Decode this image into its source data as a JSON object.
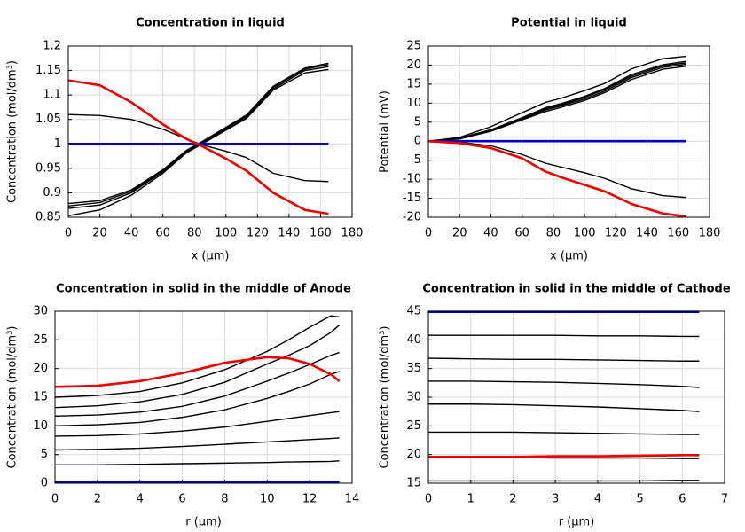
{
  "chart_data": [
    {
      "type": "line",
      "title": "Concentration in liquid",
      "xlabel": "x (µm)",
      "ylabel": "Concentration (mol/dm³)",
      "x": [
        0,
        20,
        40,
        60,
        75,
        85,
        100,
        113,
        130,
        150,
        165
      ],
      "series": [
        {
          "color": "#000000",
          "values": [
            0.853,
            0.865,
            0.895,
            0.94,
            0.982,
            1.0,
            1.028,
            1.052,
            1.11,
            1.145,
            1.152
          ]
        },
        {
          "color": "#000000",
          "values": [
            0.868,
            0.875,
            0.9,
            0.943,
            0.984,
            1.002,
            1.03,
            1.055,
            1.113,
            1.15,
            1.158
          ]
        },
        {
          "color": "#000000",
          "values": [
            0.873,
            0.88,
            0.903,
            0.945,
            0.986,
            1.004,
            1.032,
            1.057,
            1.116,
            1.153,
            1.162
          ]
        },
        {
          "color": "#000000",
          "values": [
            0.878,
            0.884,
            0.906,
            0.947,
            0.987,
            1.005,
            1.034,
            1.059,
            1.118,
            1.155,
            1.165
          ]
        },
        {
          "color": "#000000",
          "values": [
            1.06,
            1.058,
            1.05,
            1.03,
            1.01,
            0.998,
            0.985,
            0.972,
            0.94,
            0.925,
            0.923
          ]
        },
        {
          "color": "#0000cc",
          "values": [
            1,
            1,
            1,
            1,
            1,
            1,
            1,
            1,
            1,
            1,
            1
          ]
        },
        {
          "color": "#ee0000",
          "values": [
            1.13,
            1.12,
            1.085,
            1.04,
            1.01,
            0.995,
            0.97,
            0.945,
            0.9,
            0.865,
            0.857
          ]
        }
      ],
      "xlim": [
        0,
        180
      ],
      "xticks": [
        0,
        20,
        40,
        60,
        80,
        100,
        120,
        140,
        160,
        180
      ],
      "ylim": [
        0.85,
        1.2
      ],
      "yticks": [
        0.85,
        0.9,
        0.95,
        1,
        1.05,
        1.1,
        1.15,
        1.2
      ],
      "grid": true
    },
    {
      "type": "line",
      "title": "Potential in liquid",
      "xlabel": "x (µm)",
      "ylabel": "Potential (mV)",
      "x": [
        0,
        20,
        40,
        60,
        75,
        85,
        100,
        113,
        130,
        150,
        165
      ],
      "series": [
        {
          "color": "#000000",
          "values": [
            0,
            1,
            3.8,
            7.5,
            10.2,
            11.3,
            13.3,
            15.2,
            19,
            21.7,
            22.3
          ]
        },
        {
          "color": "#000000",
          "values": [
            0,
            0.8,
            3,
            6.2,
            8.8,
            9.9,
            11.8,
            13.9,
            17.5,
            20.1,
            21
          ]
        },
        {
          "color": "#000000",
          "values": [
            0,
            0.75,
            2.9,
            6,
            8.5,
            9.6,
            11.5,
            13.6,
            17.1,
            19.8,
            20.6
          ]
        },
        {
          "color": "#000000",
          "values": [
            0,
            0.7,
            2.8,
            5.8,
            8.2,
            9.3,
            11.1,
            13.2,
            16.7,
            19.4,
            20.2
          ]
        },
        {
          "color": "#000000",
          "values": [
            0,
            0.6,
            2.6,
            5.6,
            7.8,
            8.9,
            10.7,
            12.8,
            16.2,
            18.9,
            19.7
          ]
        },
        {
          "color": "#000000",
          "values": [
            0,
            -0.3,
            -1.2,
            -3.5,
            -5.8,
            -6.8,
            -8.3,
            -9.8,
            -12.5,
            -14.3,
            -14.8
          ]
        },
        {
          "color": "#0000cc",
          "values": [
            0,
            0,
            0,
            0,
            0,
            0,
            0,
            0,
            0,
            0,
            0
          ]
        },
        {
          "color": "#ee0000",
          "values": [
            0,
            -0.5,
            -1.8,
            -4.5,
            -8,
            -9.5,
            -11.5,
            -13.2,
            -16.5,
            -19,
            -19.8
          ]
        }
      ],
      "xlim": [
        0,
        180
      ],
      "xticks": [
        0,
        20,
        40,
        60,
        80,
        100,
        120,
        140,
        160,
        180
      ],
      "ylim": [
        -20,
        25
      ],
      "yticks": [
        -20,
        -15,
        -10,
        -5,
        0,
        5,
        10,
        15,
        20,
        25
      ],
      "grid": true
    },
    {
      "type": "line",
      "title": "Concentration in solid in the middle of Anode",
      "xlabel": "r (µm)",
      "ylabel": "Concentration (mol/dm³)",
      "x": [
        0,
        2,
        4,
        6,
        8,
        10,
        11,
        12,
        13,
        13.4
      ],
      "series": [
        {
          "color": "#000000",
          "values": [
            3.2,
            3.2,
            3.3,
            3.4,
            3.5,
            3.6,
            3.7,
            3.75,
            3.8,
            3.9
          ]
        },
        {
          "color": "#000000",
          "values": [
            5.8,
            5.9,
            6.1,
            6.4,
            6.8,
            7.2,
            7.4,
            7.6,
            7.8,
            7.9
          ]
        },
        {
          "color": "#000000",
          "values": [
            8.2,
            8.3,
            8.6,
            9.1,
            9.8,
            10.8,
            11.3,
            11.8,
            12.3,
            12.5
          ]
        },
        {
          "color": "#000000",
          "values": [
            10,
            10.2,
            10.6,
            11.5,
            12.8,
            14.8,
            16,
            17.3,
            19,
            19.5
          ]
        },
        {
          "color": "#000000",
          "values": [
            11.7,
            11.9,
            12.4,
            13.4,
            15.2,
            17.8,
            19.2,
            20.7,
            22.3,
            22.8
          ]
        },
        {
          "color": "#000000",
          "values": [
            13.2,
            13.5,
            14.2,
            15.5,
            17.6,
            20.8,
            22.3,
            24,
            26.3,
            27.6
          ]
        },
        {
          "color": "#000000",
          "values": [
            15,
            15.3,
            16,
            17.5,
            19.8,
            23,
            25,
            27.2,
            29.2,
            29
          ]
        },
        {
          "color": "#0000cc",
          "values": [
            0.2,
            0.2,
            0.2,
            0.2,
            0.2,
            0.2,
            0.2,
            0.2,
            0.2,
            0.2
          ]
        },
        {
          "color": "#ee0000",
          "values": [
            16.8,
            17,
            17.8,
            19.2,
            21,
            22,
            21.8,
            20.8,
            19,
            17.8
          ]
        }
      ],
      "xlim": [
        0,
        14
      ],
      "xticks": [
        0,
        2,
        4,
        6,
        8,
        10,
        12,
        14
      ],
      "ylim": [
        0,
        30
      ],
      "yticks": [
        0,
        5,
        10,
        15,
        20,
        25,
        30
      ],
      "grid": true
    },
    {
      "type": "line",
      "title": "Concentration in solid in the middle of Cathode",
      "xlabel": "r (µm)",
      "ylabel": "Concentration (mol/dm³)",
      "x": [
        0,
        1,
        2,
        3,
        4,
        5,
        6,
        6.4
      ],
      "series": [
        {
          "color": "#000000",
          "values": [
            40.8,
            40.8,
            40.8,
            40.8,
            40.7,
            40.7,
            40.6,
            40.6
          ]
        },
        {
          "color": "#000000",
          "values": [
            36.8,
            36.7,
            36.6,
            36.6,
            36.5,
            36.4,
            36.3,
            36.3
          ]
        },
        {
          "color": "#000000",
          "values": [
            32.8,
            32.8,
            32.7,
            32.6,
            32.4,
            32.2,
            31.9,
            31.7
          ]
        },
        {
          "color": "#000000",
          "values": [
            28.8,
            28.8,
            28.7,
            28.5,
            28.3,
            28,
            27.7,
            27.5
          ]
        },
        {
          "color": "#000000",
          "values": [
            23.9,
            23.9,
            23.9,
            23.8,
            23.7,
            23.6,
            23.5,
            23.5
          ]
        },
        {
          "color": "#000000",
          "values": [
            19.5,
            19.5,
            19.5,
            19.4,
            19.4,
            19.4,
            19.3,
            19.3
          ]
        },
        {
          "color": "#000000",
          "values": [
            15.4,
            15.4,
            15.4,
            15.4,
            15.4,
            15.4,
            15.5,
            15.5
          ]
        },
        {
          "color": "#0000cc",
          "values": [
            44.9,
            44.9,
            44.9,
            44.9,
            44.9,
            44.9,
            44.9,
            44.9
          ]
        },
        {
          "color": "#ee0000",
          "values": [
            19.6,
            19.6,
            19.6,
            19.7,
            19.7,
            19.8,
            19.9,
            19.9
          ]
        }
      ],
      "xlim": [
        0,
        7
      ],
      "xticks": [
        0,
        1,
        2,
        3,
        4,
        5,
        6,
        7
      ],
      "ylim": [
        15,
        45
      ],
      "yticks": [
        15,
        20,
        25,
        30,
        35,
        40,
        45
      ],
      "grid": true
    }
  ]
}
